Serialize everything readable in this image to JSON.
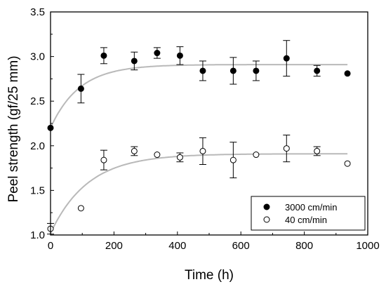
{
  "chart_data": {
    "type": "scatter",
    "xlabel": "Time (h)",
    "ylabel": "Peel strength (gf/25 mm)",
    "xlim": [
      0,
      1000
    ],
    "ylim": [
      1.0,
      3.5
    ],
    "xticks": [
      0,
      200,
      400,
      600,
      800,
      1000
    ],
    "yticks": [
      1.0,
      1.5,
      2.0,
      2.5,
      3.0,
      3.5
    ],
    "xtick_labels": [
      "0",
      "200",
      "400",
      "600",
      "800",
      "1000"
    ],
    "ytick_labels": [
      "1.0",
      "1.5",
      "2.0",
      "2.5",
      "3.0",
      "3.5"
    ],
    "grid": false,
    "legend_position": "bottom-right",
    "series": [
      {
        "name": "3000 cm/min",
        "marker": "filled-circle",
        "color": "#000000",
        "points": [
          {
            "x": 0,
            "y": 2.2,
            "err": 0
          },
          {
            "x": 96,
            "y": 2.64,
            "err": 0.16
          },
          {
            "x": 168,
            "y": 3.01,
            "err": 0.09
          },
          {
            "x": 264,
            "y": 2.95,
            "err": 0.1
          },
          {
            "x": 336,
            "y": 3.04,
            "err": 0.06
          },
          {
            "x": 408,
            "y": 3.01,
            "err": 0.1
          },
          {
            "x": 480,
            "y": 2.84,
            "err": 0.11
          },
          {
            "x": 576,
            "y": 2.84,
            "err": 0.15
          },
          {
            "x": 648,
            "y": 2.84,
            "err": 0.11
          },
          {
            "x": 744,
            "y": 2.98,
            "err": 0.2
          },
          {
            "x": 840,
            "y": 2.84,
            "err": 0.06
          },
          {
            "x": 936,
            "y": 2.81,
            "err": 0
          }
        ],
        "fit_curve": {
          "y0": 2.2,
          "plateau": 2.91,
          "rate": 0.011
        }
      },
      {
        "name": "40 cm/min",
        "marker": "open-circle",
        "color": "#000000",
        "points": [
          {
            "x": 0,
            "y": 1.07,
            "err": 0.06
          },
          {
            "x": 96,
            "y": 1.3,
            "err": 0
          },
          {
            "x": 168,
            "y": 1.84,
            "err": 0.11
          },
          {
            "x": 264,
            "y": 1.94,
            "err": 0.05
          },
          {
            "x": 336,
            "y": 1.9,
            "err": 0
          },
          {
            "x": 408,
            "y": 1.87,
            "err": 0.05
          },
          {
            "x": 480,
            "y": 1.94,
            "err": 0.15
          },
          {
            "x": 576,
            "y": 1.84,
            "err": 0.2
          },
          {
            "x": 648,
            "y": 1.9,
            "err": 0
          },
          {
            "x": 744,
            "y": 1.97,
            "err": 0.15
          },
          {
            "x": 840,
            "y": 1.94,
            "err": 0.05
          },
          {
            "x": 936,
            "y": 1.8,
            "err": 0
          }
        ],
        "fit_curve": {
          "y0": 1.02,
          "plateau": 1.91,
          "rate": 0.0085
        }
      }
    ],
    "colors": {
      "axis": "#000000",
      "fit_line": "#b9b9b9",
      "marker": "#000000"
    }
  }
}
